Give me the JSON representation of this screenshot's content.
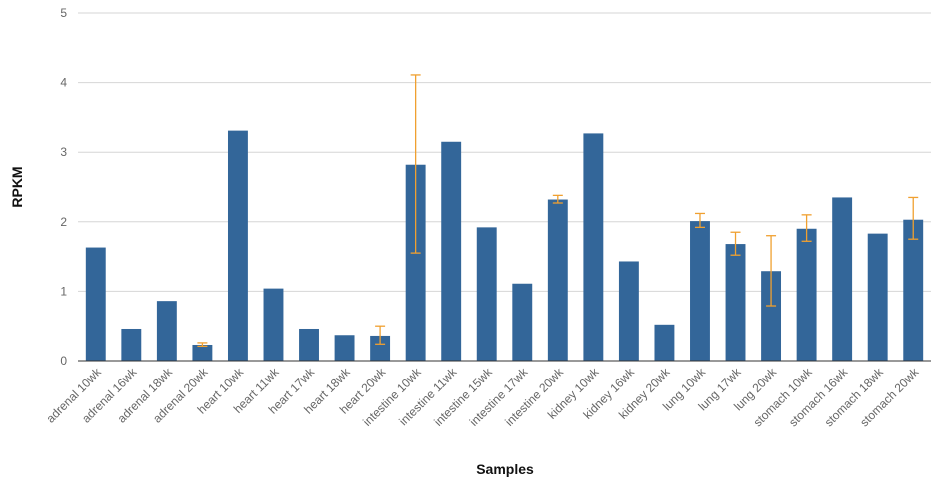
{
  "chart_data": {
    "type": "bar",
    "xlabel": "Samples",
    "ylabel": "RPKM",
    "ylim": [
      0,
      5
    ],
    "y_ticks": [
      0,
      1,
      2,
      3,
      4,
      5
    ],
    "grid": true,
    "categories": [
      "adrenal 10wk",
      "adrenal 16wk",
      "adrenal 18wk",
      "adrenal 20wk",
      "heart 10wk",
      "heart 11wk",
      "heart 17wk",
      "heart 18wk",
      "heart 20wk",
      "intestine 10wk",
      "intestine 11wk",
      "intestine 15wk",
      "intestine 17wk",
      "intestine 20wk",
      "kidney 10wk",
      "kidney 16wk",
      "kidney 20wk",
      "lung 10wk",
      "lung 17wk",
      "lung 20wk",
      "stomach 10wk",
      "stomach 16wk",
      "stomach 18wk",
      "stomach 20wk"
    ],
    "values": [
      1.63,
      0.46,
      0.86,
      0.23,
      3.31,
      1.04,
      0.46,
      0.37,
      0.36,
      2.82,
      3.15,
      1.92,
      1.11,
      2.32,
      3.27,
      1.43,
      0.52,
      2.01,
      1.68,
      1.29,
      1.9,
      2.35,
      1.83,
      2.03
    ],
    "error_low": [
      null,
      null,
      null,
      0.21,
      null,
      null,
      null,
      null,
      0.24,
      1.55,
      null,
      null,
      null,
      2.27,
      null,
      null,
      null,
      1.92,
      1.52,
      0.79,
      1.72,
      null,
      null,
      1.75
    ],
    "error_high": [
      null,
      null,
      null,
      0.26,
      null,
      null,
      null,
      null,
      0.5,
      4.11,
      null,
      null,
      null,
      2.38,
      null,
      null,
      null,
      2.12,
      1.85,
      1.8,
      2.1,
      null,
      null,
      2.35
    ],
    "colors": {
      "bar": "#336699",
      "error": "#F0A030",
      "grid": "#d6d6d6",
      "axis": "#333333"
    }
  }
}
